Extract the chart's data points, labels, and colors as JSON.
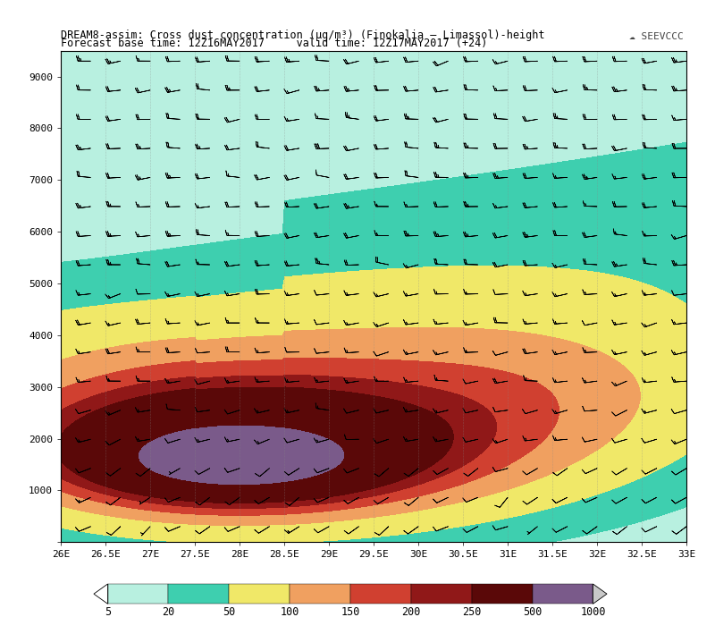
{
  "title_line1": "DREAM8-assim: Cross dust concentration (μg/m³) (Finokalia – Limassol)-height",
  "title_line2": "Forecast base time: 12Z16MAY2017     valid time: 12Z17MAY2017 (+24)",
  "xlabel_ticks": [
    "26E",
    "26.5E",
    "27E",
    "27.5E",
    "28E",
    "28.5E",
    "29E",
    "29.5E",
    "30E",
    "30.5E",
    "31E",
    "31.5E",
    "32E",
    "32.5E",
    "33E"
  ],
  "xlabel_vals": [
    26.0,
    26.5,
    27.0,
    27.5,
    28.0,
    28.5,
    29.0,
    29.5,
    30.0,
    30.5,
    31.0,
    31.5,
    32.0,
    32.5,
    33.0
  ],
  "ylabel_ticks": [
    0,
    1000,
    2000,
    3000,
    4000,
    5000,
    6000,
    7000,
    8000,
    9000
  ],
  "xlim": [
    26.0,
    33.0
  ],
  "ylim": [
    0,
    9500
  ],
  "levels": [
    5,
    20,
    50,
    100,
    150,
    200,
    250,
    500,
    1000
  ],
  "colors": [
    "#b8f0e0",
    "#3ecfaf",
    "#f0e868",
    "#f0a060",
    "#d04030",
    "#901818",
    "#5a0808",
    "#7a5a8a"
  ],
  "background_color": "#ffffff"
}
